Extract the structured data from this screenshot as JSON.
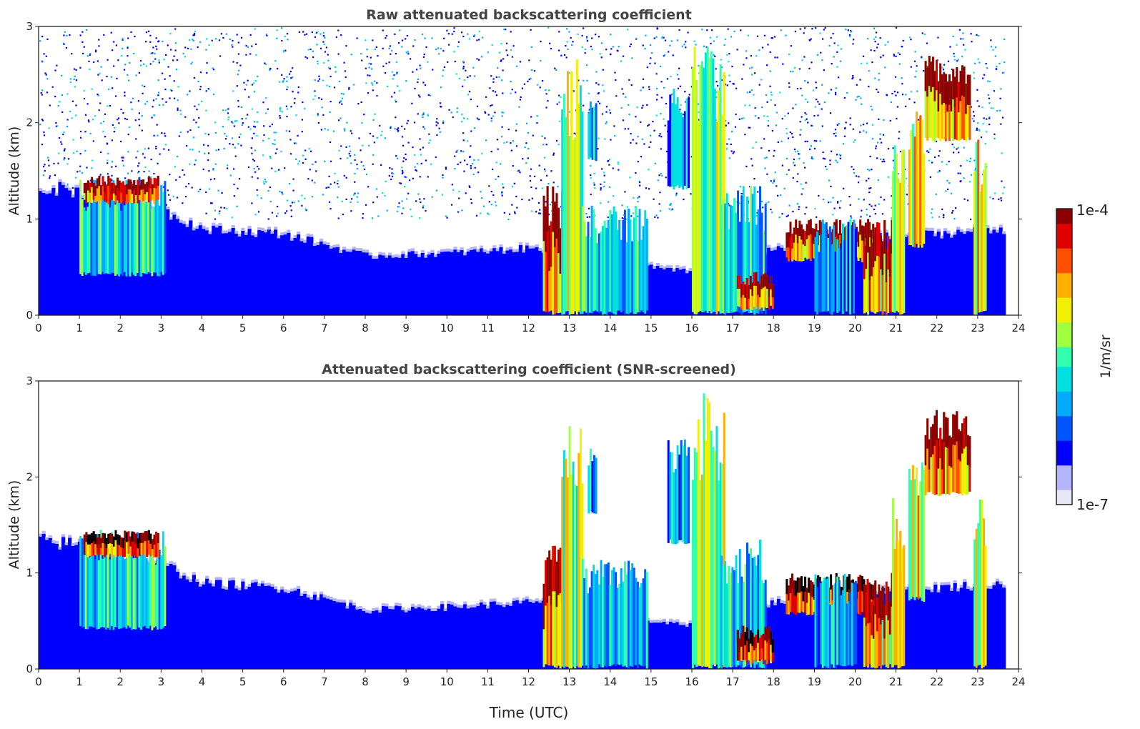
{
  "colors": {
    "colormap": [
      "#e6e6f5",
      "#b4b4ff",
      "#0000ff",
      "#0055ff",
      "#00aaff",
      "#00e0e0",
      "#30ffb0",
      "#a0ff40",
      "#f0f000",
      "#ffb000",
      "#ff5000",
      "#e00000",
      "#8b0000"
    ],
    "saturated": "#000000",
    "text": "#222222",
    "title": "#444444"
  },
  "figure": {
    "xlabel": "Time (UTC)"
  },
  "colorbar": {
    "label": "1/m/sr",
    "top_label": "1e-4",
    "bottom_label": "1e-7",
    "vmin": 1e-07,
    "vmax": 0.0001,
    "scale": "log"
  },
  "chart_data": [
    {
      "type": "heatmap",
      "id": "raw",
      "title": "Raw attenuated backscattering coefficient",
      "xlabel": "",
      "ylabel": "Altitude (km)",
      "xlim": [
        0,
        24
      ],
      "ylim": [
        0,
        3
      ],
      "x_ticks": [
        0,
        1,
        2,
        3,
        4,
        5,
        6,
        7,
        8,
        9,
        10,
        11,
        12,
        13,
        14,
        15,
        16,
        17,
        18,
        19,
        20,
        21,
        22,
        23,
        24
      ],
      "y_ticks": [
        0,
        1,
        2,
        3
      ],
      "data_end_hour": 23.65,
      "noise_background": true,
      "boundary_layer_top_km": [
        [
          0,
          1.35
        ],
        [
          1,
          1.3
        ],
        [
          3,
          1.1
        ],
        [
          4,
          0.9
        ],
        [
          6,
          0.85
        ],
        [
          8,
          0.62
        ],
        [
          10,
          0.65
        ],
        [
          12,
          0.7
        ],
        [
          14,
          0.6
        ],
        [
          15,
          0.5
        ],
        [
          16,
          0.45
        ],
        [
          18,
          0.7
        ],
        [
          20,
          0.8
        ],
        [
          23.65,
          0.9
        ]
      ],
      "cloud_features": [
        {
          "t0": 1.0,
          "t1": 3.1,
          "z0": 0.4,
          "z1": 1.45,
          "level": 0.6
        },
        {
          "t0": 1.1,
          "t1": 2.9,
          "z0": 1.15,
          "z1": 1.45,
          "level": 0.95
        },
        {
          "t0": 12.35,
          "t1": 12.8,
          "z0": 0.0,
          "z1": 1.35,
          "level": 0.9
        },
        {
          "t0": 12.8,
          "t1": 13.3,
          "z0": 0.0,
          "z1": 2.7,
          "level": 0.75
        },
        {
          "t0": 13.45,
          "t1": 13.65,
          "z0": 1.6,
          "z1": 2.3,
          "level": 0.55
        },
        {
          "t0": 13.3,
          "t1": 14.9,
          "z0": 0.0,
          "z1": 1.15,
          "level": 0.55
        },
        {
          "t0": 15.4,
          "t1": 15.9,
          "z0": 1.3,
          "z1": 2.4,
          "level": 0.5
        },
        {
          "t0": 16.0,
          "t1": 16.8,
          "z0": 0.0,
          "z1": 2.9,
          "level": 0.75
        },
        {
          "t0": 16.7,
          "t1": 17.8,
          "z0": 0.0,
          "z1": 1.35,
          "level": 0.6
        },
        {
          "t0": 17.1,
          "t1": 18.0,
          "z0": 0.05,
          "z1": 0.45,
          "level": 0.97
        },
        {
          "t0": 18.3,
          "t1": 20.5,
          "z0": 0.55,
          "z1": 1.0,
          "level": 0.9
        },
        {
          "t0": 19.0,
          "t1": 20.0,
          "z0": 0.0,
          "z1": 1.0,
          "level": 0.5
        },
        {
          "t0": 20.2,
          "t1": 20.9,
          "z0": 0.0,
          "z1": 1.0,
          "level": 0.88
        },
        {
          "t0": 20.9,
          "t1": 21.2,
          "z0": 0.0,
          "z1": 1.8,
          "level": 0.8
        },
        {
          "t0": 21.3,
          "t1": 21.7,
          "z0": 0.7,
          "z1": 2.2,
          "level": 0.85
        },
        {
          "t0": 21.7,
          "t1": 22.8,
          "z0": 1.8,
          "z1": 2.7,
          "level": 0.92
        },
        {
          "t0": 22.9,
          "t1": 23.2,
          "z0": 0.0,
          "z1": 1.9,
          "level": 0.82
        }
      ]
    },
    {
      "type": "heatmap",
      "id": "screened",
      "title": "Attenuated backscattering coefficient (SNR-screened)",
      "xlabel": "Time (UTC)",
      "ylabel": "Altitude (km)",
      "xlim": [
        0,
        24
      ],
      "ylim": [
        0,
        3
      ],
      "x_ticks": [
        0,
        1,
        2,
        3,
        4,
        5,
        6,
        7,
        8,
        9,
        10,
        11,
        12,
        13,
        14,
        15,
        16,
        17,
        18,
        19,
        20,
        21,
        22,
        23,
        24
      ],
      "y_ticks": [
        0,
        1,
        2,
        3
      ],
      "data_end_hour": 23.65,
      "noise_background": false,
      "boundary_layer_top_km": [
        [
          0,
          1.35
        ],
        [
          1,
          1.3
        ],
        [
          3,
          1.1
        ],
        [
          4,
          0.9
        ],
        [
          6,
          0.85
        ],
        [
          8,
          0.62
        ],
        [
          10,
          0.65
        ],
        [
          12,
          0.7
        ],
        [
          14,
          0.6
        ],
        [
          15,
          0.5
        ],
        [
          16,
          0.45
        ],
        [
          18,
          0.7
        ],
        [
          20,
          0.8
        ],
        [
          23.65,
          0.9
        ]
      ],
      "cloud_features": [
        {
          "t0": 1.0,
          "t1": 3.1,
          "z0": 0.4,
          "z1": 1.45,
          "level": 0.6
        },
        {
          "t0": 1.1,
          "t1": 2.9,
          "z0": 1.15,
          "z1": 1.45,
          "level": 1.0
        },
        {
          "t0": 12.35,
          "t1": 12.8,
          "z0": 0.0,
          "z1": 1.35,
          "level": 0.92
        },
        {
          "t0": 12.8,
          "t1": 13.3,
          "z0": 0.0,
          "z1": 2.7,
          "level": 0.75
        },
        {
          "t0": 13.45,
          "t1": 13.65,
          "z0": 1.6,
          "z1": 2.3,
          "level": 0.55
        },
        {
          "t0": 13.3,
          "t1": 14.9,
          "z0": 0.0,
          "z1": 1.15,
          "level": 0.55
        },
        {
          "t0": 15.4,
          "t1": 15.9,
          "z0": 1.3,
          "z1": 2.4,
          "level": 0.5
        },
        {
          "t0": 16.0,
          "t1": 16.8,
          "z0": 0.0,
          "z1": 2.9,
          "level": 0.75
        },
        {
          "t0": 16.7,
          "t1": 17.8,
          "z0": 0.0,
          "z1": 1.35,
          "level": 0.6
        },
        {
          "t0": 17.1,
          "t1": 18.0,
          "z0": 0.05,
          "z1": 0.45,
          "level": 1.0
        },
        {
          "t0": 18.3,
          "t1": 20.5,
          "z0": 0.55,
          "z1": 1.0,
          "level": 1.0
        },
        {
          "t0": 19.0,
          "t1": 20.0,
          "z0": 0.0,
          "z1": 1.0,
          "level": 0.5
        },
        {
          "t0": 20.2,
          "t1": 20.9,
          "z0": 0.0,
          "z1": 1.0,
          "level": 0.88
        },
        {
          "t0": 20.9,
          "t1": 21.2,
          "z0": 0.0,
          "z1": 1.8,
          "level": 0.8
        },
        {
          "t0": 21.3,
          "t1": 21.7,
          "z0": 0.7,
          "z1": 2.2,
          "level": 0.85
        },
        {
          "t0": 21.7,
          "t1": 22.8,
          "z0": 1.8,
          "z1": 2.7,
          "level": 0.95
        },
        {
          "t0": 22.9,
          "t1": 23.2,
          "z0": 0.0,
          "z1": 1.9,
          "level": 0.82
        }
      ]
    }
  ]
}
